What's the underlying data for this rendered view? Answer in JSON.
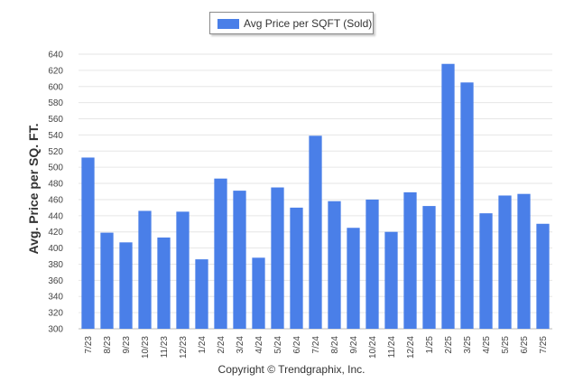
{
  "legend": {
    "label": "Avg Price per SQFT (Sold)"
  },
  "footer": {
    "copyright": "Copyright © Trendgraphix, Inc."
  },
  "colors": {
    "bar": "#4a7fe8",
    "grid": "#e6e6e6",
    "axis_text": "#444444"
  },
  "chart_data": {
    "type": "bar",
    "ylabel": "Avg. Price per SQ. FT.",
    "xlabel": "",
    "ylim": [
      300,
      640
    ],
    "yticks": [
      300,
      320,
      340,
      360,
      380,
      400,
      420,
      440,
      460,
      480,
      500,
      520,
      540,
      560,
      580,
      600,
      620,
      640
    ],
    "grid": true,
    "legend_position": "top-center",
    "categories": [
      "7/23",
      "8/23",
      "9/23",
      "10/23",
      "11/23",
      "12/23",
      "1/24",
      "2/24",
      "3/24",
      "4/24",
      "5/24",
      "6/24",
      "7/24",
      "8/24",
      "9/24",
      "10/24",
      "11/24",
      "12/24",
      "1/25",
      "2/25",
      "3/25",
      "4/25",
      "5/25",
      "6/25",
      "7/25"
    ],
    "series": [
      {
        "name": "Avg Price per SQFT (Sold)",
        "values": [
          512,
          419,
          407,
          446,
          413,
          445,
          386,
          486,
          471,
          388,
          475,
          450,
          539,
          458,
          425,
          460,
          420,
          469,
          452,
          628,
          605,
          443,
          465,
          467,
          430
        ]
      }
    ]
  }
}
